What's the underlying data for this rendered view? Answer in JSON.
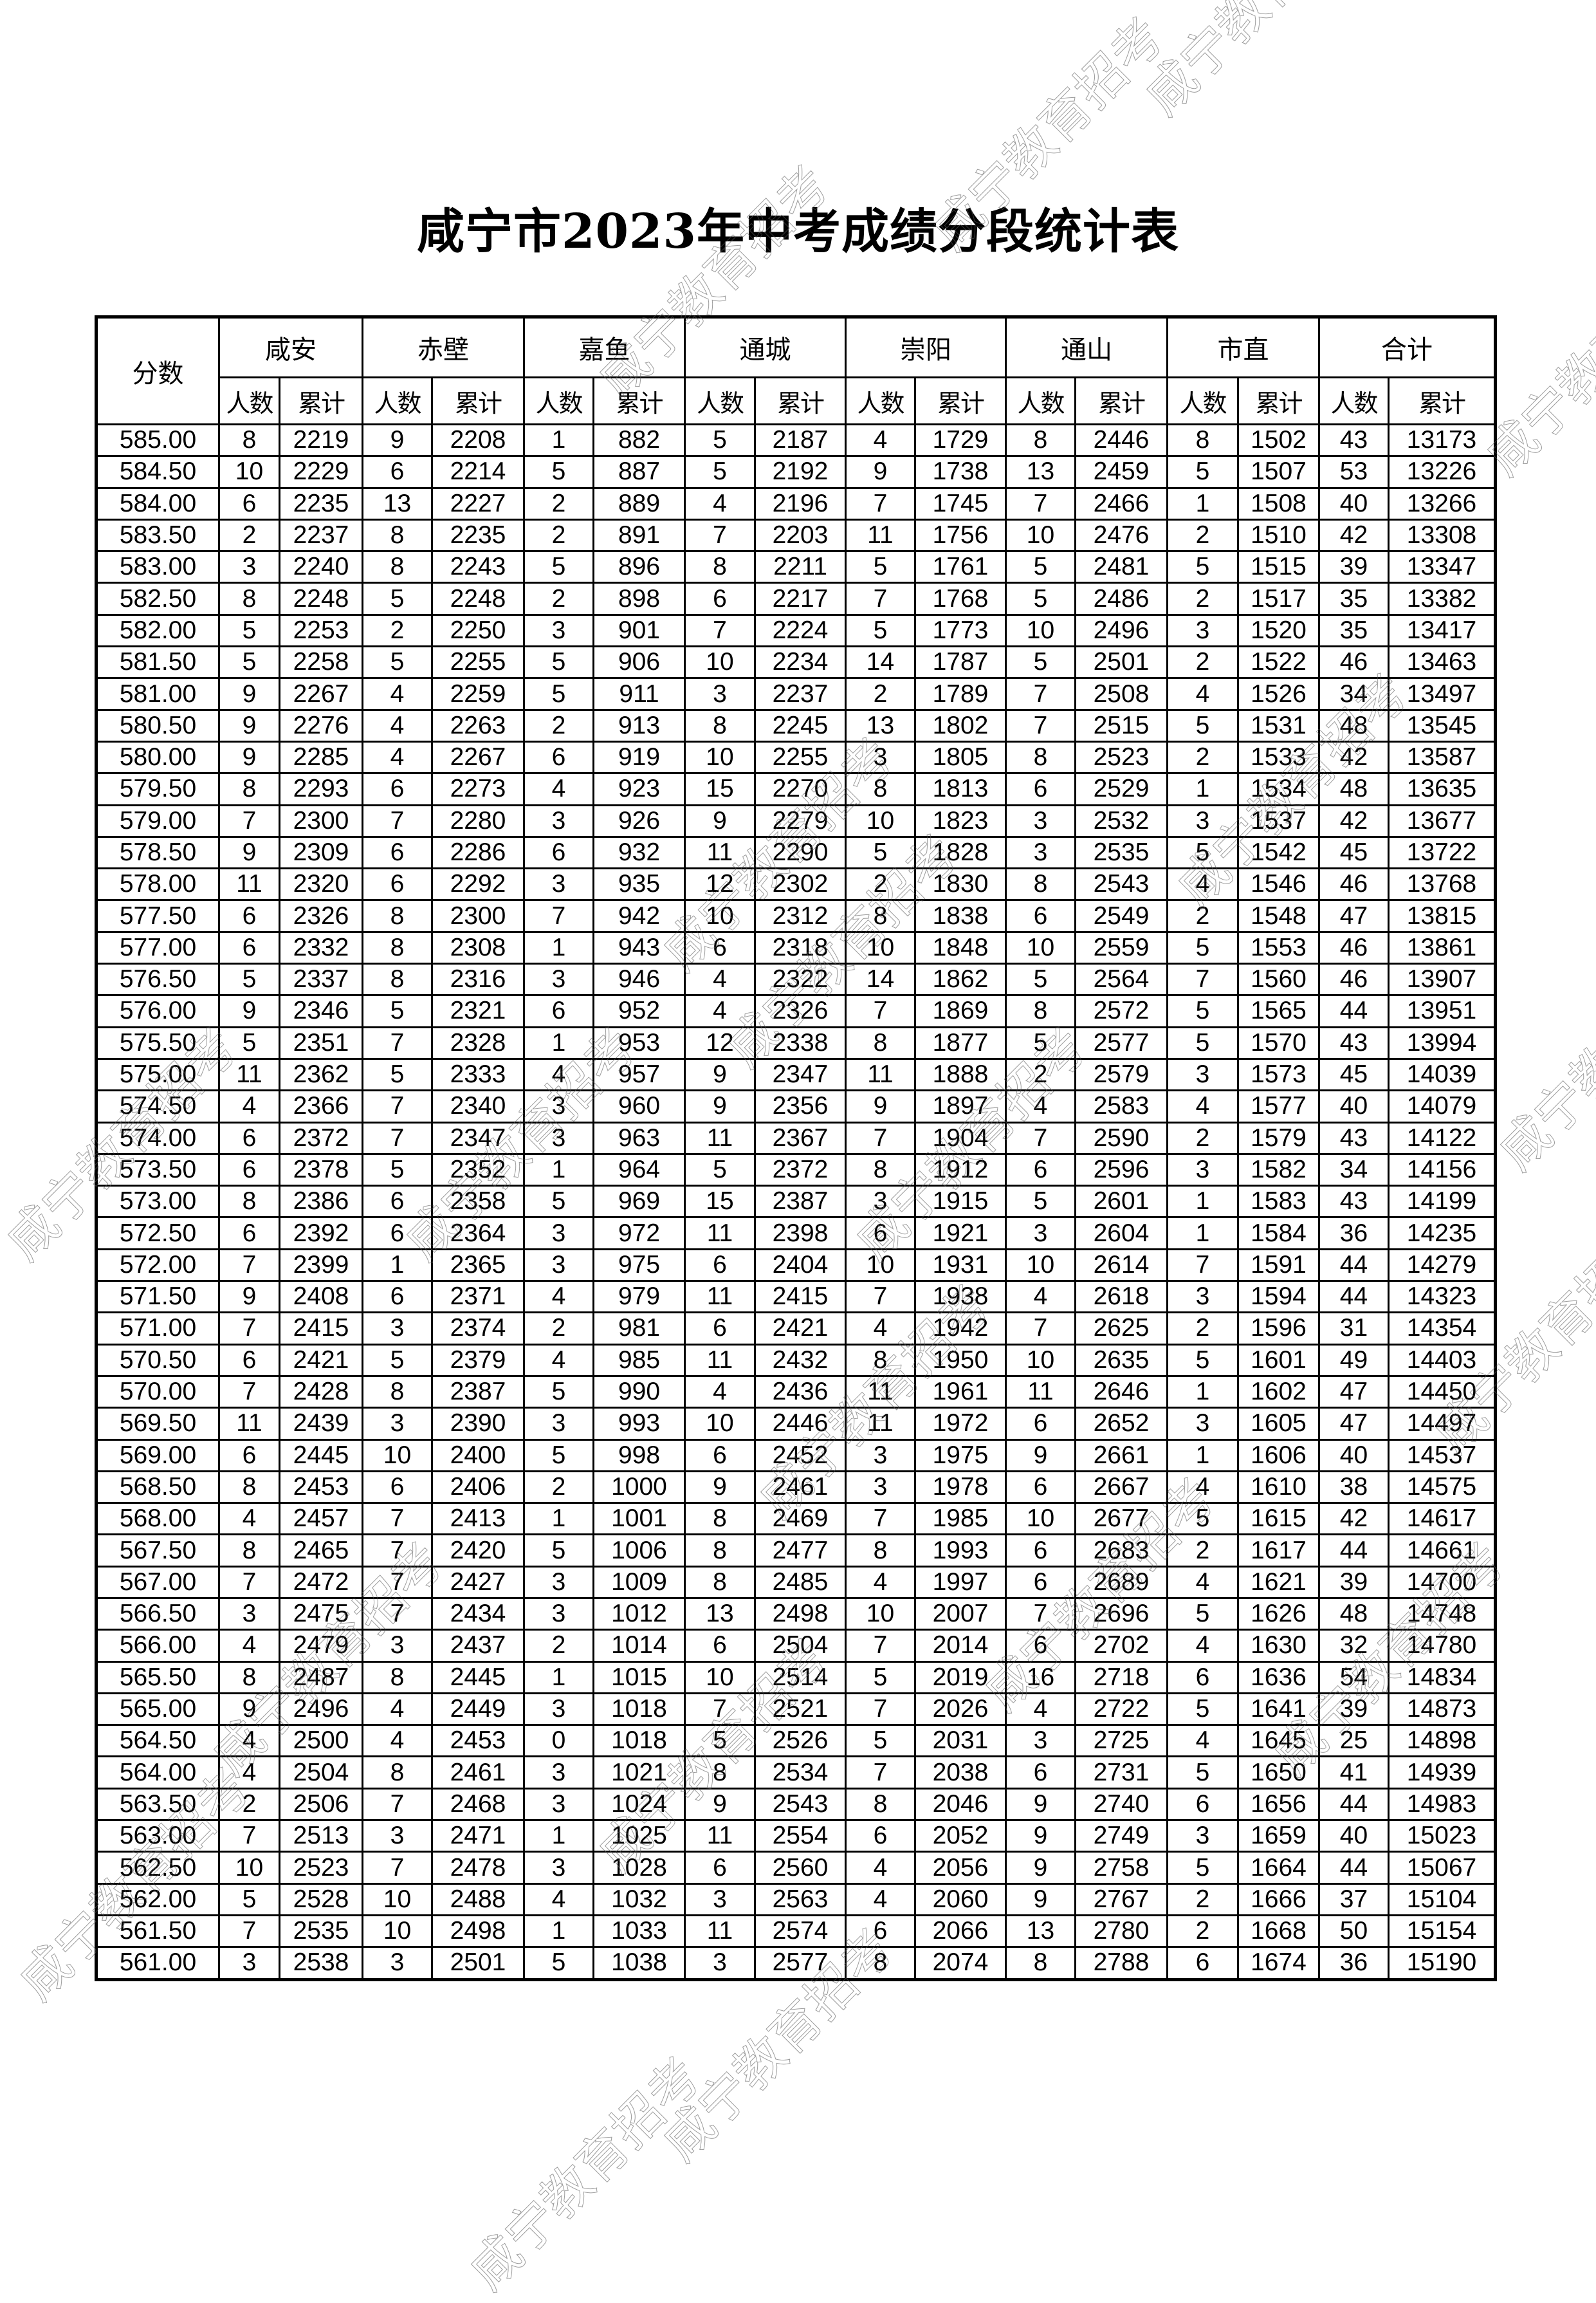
{
  "title": "咸宁市2023年中考成绩分段统计表",
  "watermark": "咸宁教育招考",
  "header": {
    "score": "分数",
    "regions": [
      "咸安",
      "赤壁",
      "嘉鱼",
      "通城",
      "崇阳",
      "通山",
      "市直",
      "合计"
    ],
    "count": "人数",
    "cumulative": "累计"
  },
  "rows": [
    [
      "585.00",
      8,
      2219,
      9,
      2208,
      1,
      882,
      5,
      2187,
      4,
      1729,
      8,
      2446,
      8,
      1502,
      43,
      13173
    ],
    [
      "584.50",
      10,
      2229,
      6,
      2214,
      5,
      887,
      5,
      2192,
      9,
      1738,
      13,
      2459,
      5,
      1507,
      53,
      13226
    ],
    [
      "584.00",
      6,
      2235,
      13,
      2227,
      2,
      889,
      4,
      2196,
      7,
      1745,
      7,
      2466,
      1,
      1508,
      40,
      13266
    ],
    [
      "583.50",
      2,
      2237,
      8,
      2235,
      2,
      891,
      7,
      2203,
      11,
      1756,
      10,
      2476,
      2,
      1510,
      42,
      13308
    ],
    [
      "583.00",
      3,
      2240,
      8,
      2243,
      5,
      896,
      8,
      2211,
      5,
      1761,
      5,
      2481,
      5,
      1515,
      39,
      13347
    ],
    [
      "582.50",
      8,
      2248,
      5,
      2248,
      2,
      898,
      6,
      2217,
      7,
      1768,
      5,
      2486,
      2,
      1517,
      35,
      13382
    ],
    [
      "582.00",
      5,
      2253,
      2,
      2250,
      3,
      901,
      7,
      2224,
      5,
      1773,
      10,
      2496,
      3,
      1520,
      35,
      13417
    ],
    [
      "581.50",
      5,
      2258,
      5,
      2255,
      5,
      906,
      10,
      2234,
      14,
      1787,
      5,
      2501,
      2,
      1522,
      46,
      13463
    ],
    [
      "581.00",
      9,
      2267,
      4,
      2259,
      5,
      911,
      3,
      2237,
      2,
      1789,
      7,
      2508,
      4,
      1526,
      34,
      13497
    ],
    [
      "580.50",
      9,
      2276,
      4,
      2263,
      2,
      913,
      8,
      2245,
      13,
      1802,
      7,
      2515,
      5,
      1531,
      48,
      13545
    ],
    [
      "580.00",
      9,
      2285,
      4,
      2267,
      6,
      919,
      10,
      2255,
      3,
      1805,
      8,
      2523,
      2,
      1533,
      42,
      13587
    ],
    [
      "579.50",
      8,
      2293,
      6,
      2273,
      4,
      923,
      15,
      2270,
      8,
      1813,
      6,
      2529,
      1,
      1534,
      48,
      13635
    ],
    [
      "579.00",
      7,
      2300,
      7,
      2280,
      3,
      926,
      9,
      2279,
      10,
      1823,
      3,
      2532,
      3,
      1537,
      42,
      13677
    ],
    [
      "578.50",
      9,
      2309,
      6,
      2286,
      6,
      932,
      11,
      2290,
      5,
      1828,
      3,
      2535,
      5,
      1542,
      45,
      13722
    ],
    [
      "578.00",
      11,
      2320,
      6,
      2292,
      3,
      935,
      12,
      2302,
      2,
      1830,
      8,
      2543,
      4,
      1546,
      46,
      13768
    ],
    [
      "577.50",
      6,
      2326,
      8,
      2300,
      7,
      942,
      10,
      2312,
      8,
      1838,
      6,
      2549,
      2,
      1548,
      47,
      13815
    ],
    [
      "577.00",
      6,
      2332,
      8,
      2308,
      1,
      943,
      6,
      2318,
      10,
      1848,
      10,
      2559,
      5,
      1553,
      46,
      13861
    ],
    [
      "576.50",
      5,
      2337,
      8,
      2316,
      3,
      946,
      4,
      2322,
      14,
      1862,
      5,
      2564,
      7,
      1560,
      46,
      13907
    ],
    [
      "576.00",
      9,
      2346,
      5,
      2321,
      6,
      952,
      4,
      2326,
      7,
      1869,
      8,
      2572,
      5,
      1565,
      44,
      13951
    ],
    [
      "575.50",
      5,
      2351,
      7,
      2328,
      1,
      953,
      12,
      2338,
      8,
      1877,
      5,
      2577,
      5,
      1570,
      43,
      13994
    ],
    [
      "575.00",
      11,
      2362,
      5,
      2333,
      4,
      957,
      9,
      2347,
      11,
      1888,
      2,
      2579,
      3,
      1573,
      45,
      14039
    ],
    [
      "574.50",
      4,
      2366,
      7,
      2340,
      3,
      960,
      9,
      2356,
      9,
      1897,
      4,
      2583,
      4,
      1577,
      40,
      14079
    ],
    [
      "574.00",
      6,
      2372,
      7,
      2347,
      3,
      963,
      11,
      2367,
      7,
      1904,
      7,
      2590,
      2,
      1579,
      43,
      14122
    ],
    [
      "573.50",
      6,
      2378,
      5,
      2352,
      1,
      964,
      5,
      2372,
      8,
      1912,
      6,
      2596,
      3,
      1582,
      34,
      14156
    ],
    [
      "573.00",
      8,
      2386,
      6,
      2358,
      5,
      969,
      15,
      2387,
      3,
      1915,
      5,
      2601,
      1,
      1583,
      43,
      14199
    ],
    [
      "572.50",
      6,
      2392,
      6,
      2364,
      3,
      972,
      11,
      2398,
      6,
      1921,
      3,
      2604,
      1,
      1584,
      36,
      14235
    ],
    [
      "572.00",
      7,
      2399,
      1,
      2365,
      3,
      975,
      6,
      2404,
      10,
      1931,
      10,
      2614,
      7,
      1591,
      44,
      14279
    ],
    [
      "571.50",
      9,
      2408,
      6,
      2371,
      4,
      979,
      11,
      2415,
      7,
      1938,
      4,
      2618,
      3,
      1594,
      44,
      14323
    ],
    [
      "571.00",
      7,
      2415,
      3,
      2374,
      2,
      981,
      6,
      2421,
      4,
      1942,
      7,
      2625,
      2,
      1596,
      31,
      14354
    ],
    [
      "570.50",
      6,
      2421,
      5,
      2379,
      4,
      985,
      11,
      2432,
      8,
      1950,
      10,
      2635,
      5,
      1601,
      49,
      14403
    ],
    [
      "570.00",
      7,
      2428,
      8,
      2387,
      5,
      990,
      4,
      2436,
      11,
      1961,
      11,
      2646,
      1,
      1602,
      47,
      14450
    ],
    [
      "569.50",
      11,
      2439,
      3,
      2390,
      3,
      993,
      10,
      2446,
      11,
      1972,
      6,
      2652,
      3,
      1605,
      47,
      14497
    ],
    [
      "569.00",
      6,
      2445,
      10,
      2400,
      5,
      998,
      6,
      2452,
      3,
      1975,
      9,
      2661,
      1,
      1606,
      40,
      14537
    ],
    [
      "568.50",
      8,
      2453,
      6,
      2406,
      2,
      1000,
      9,
      2461,
      3,
      1978,
      6,
      2667,
      4,
      1610,
      38,
      14575
    ],
    [
      "568.00",
      4,
      2457,
      7,
      2413,
      1,
      1001,
      8,
      2469,
      7,
      1985,
      10,
      2677,
      5,
      1615,
      42,
      14617
    ],
    [
      "567.50",
      8,
      2465,
      7,
      2420,
      5,
      1006,
      8,
      2477,
      8,
      1993,
      6,
      2683,
      2,
      1617,
      44,
      14661
    ],
    [
      "567.00",
      7,
      2472,
      7,
      2427,
      3,
      1009,
      8,
      2485,
      4,
      1997,
      6,
      2689,
      4,
      1621,
      39,
      14700
    ],
    [
      "566.50",
      3,
      2475,
      7,
      2434,
      3,
      1012,
      13,
      2498,
      10,
      2007,
      7,
      2696,
      5,
      1626,
      48,
      14748
    ],
    [
      "566.00",
      4,
      2479,
      3,
      2437,
      2,
      1014,
      6,
      2504,
      7,
      2014,
      6,
      2702,
      4,
      1630,
      32,
      14780
    ],
    [
      "565.50",
      8,
      2487,
      8,
      2445,
      1,
      1015,
      10,
      2514,
      5,
      2019,
      16,
      2718,
      6,
      1636,
      54,
      14834
    ],
    [
      "565.00",
      9,
      2496,
      4,
      2449,
      3,
      1018,
      7,
      2521,
      7,
      2026,
      4,
      2722,
      5,
      1641,
      39,
      14873
    ],
    [
      "564.50",
      4,
      2500,
      4,
      2453,
      0,
      1018,
      5,
      2526,
      5,
      2031,
      3,
      2725,
      4,
      1645,
      25,
      14898
    ],
    [
      "564.00",
      4,
      2504,
      8,
      2461,
      3,
      1021,
      8,
      2534,
      7,
      2038,
      6,
      2731,
      5,
      1650,
      41,
      14939
    ],
    [
      "563.50",
      2,
      2506,
      7,
      2468,
      3,
      1024,
      9,
      2543,
      8,
      2046,
      9,
      2740,
      6,
      1656,
      44,
      14983
    ],
    [
      "563.00",
      7,
      2513,
      3,
      2471,
      1,
      1025,
      11,
      2554,
      6,
      2052,
      9,
      2749,
      3,
      1659,
      40,
      15023
    ],
    [
      "562.50",
      10,
      2523,
      7,
      2478,
      3,
      1028,
      6,
      2560,
      4,
      2056,
      9,
      2758,
      5,
      1664,
      44,
      15067
    ],
    [
      "562.00",
      5,
      2528,
      10,
      2488,
      4,
      1032,
      3,
      2563,
      4,
      2060,
      9,
      2767,
      2,
      1666,
      37,
      15104
    ],
    [
      "561.50",
      7,
      2535,
      10,
      2498,
      1,
      1033,
      11,
      2574,
      6,
      2066,
      13,
      2780,
      2,
      1668,
      50,
      15154
    ],
    [
      "561.00",
      3,
      2538,
      3,
      2501,
      5,
      1038,
      3,
      2577,
      8,
      2074,
      8,
      2788,
      6,
      1674,
      36,
      15190
    ]
  ]
}
